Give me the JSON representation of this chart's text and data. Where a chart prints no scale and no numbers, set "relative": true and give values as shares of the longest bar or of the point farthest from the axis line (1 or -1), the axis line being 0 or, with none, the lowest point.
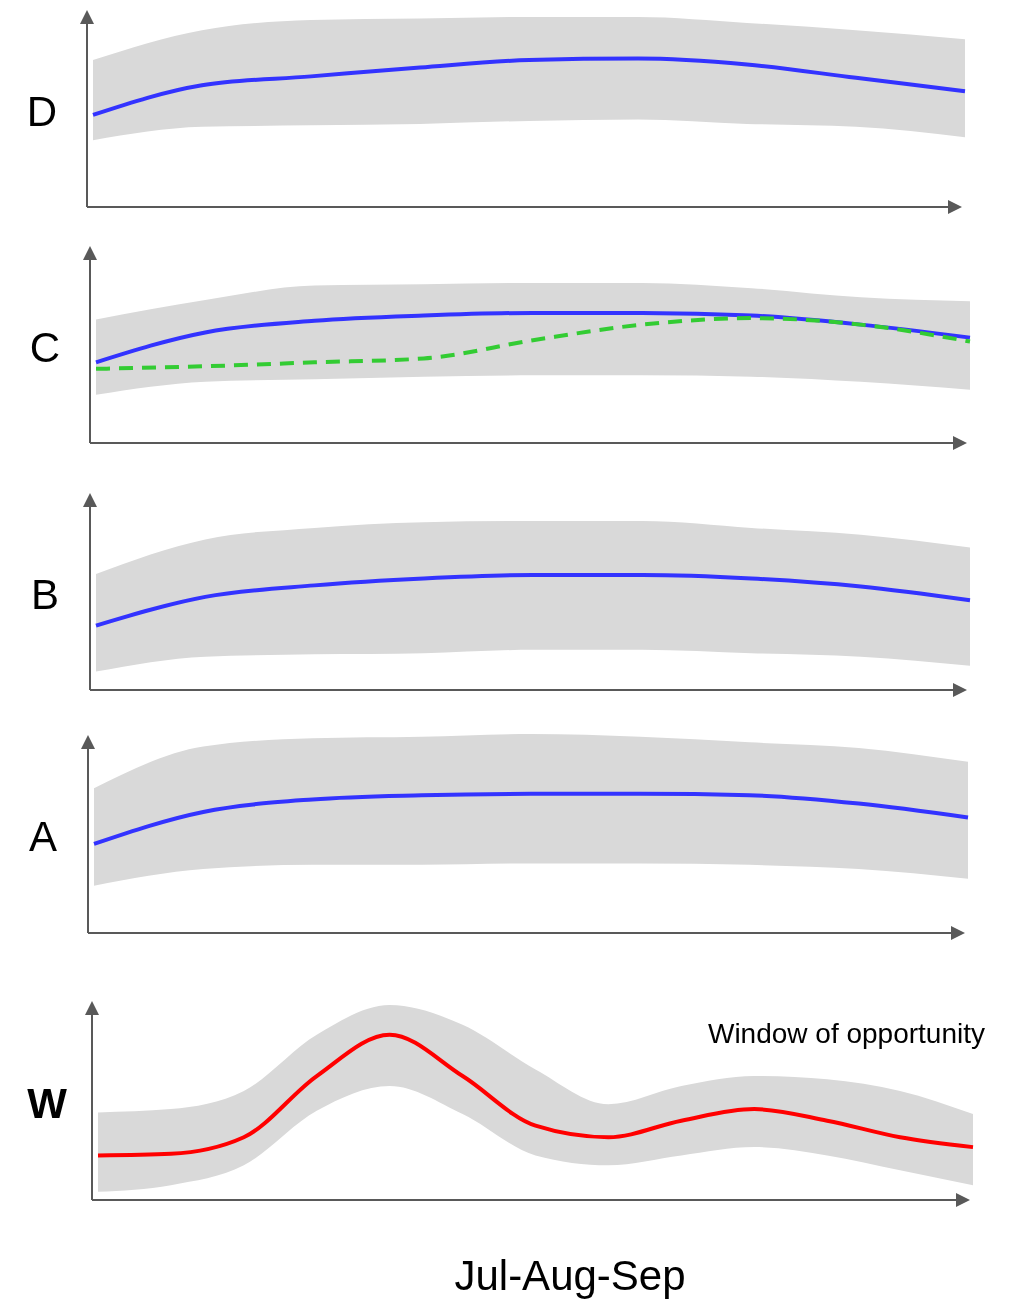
{
  "chart_data": [
    {
      "type": "line",
      "relative": true,
      "ylabel": "D",
      "categories": [
        null,
        null,
        null,
        null,
        null,
        null,
        null,
        null,
        null
      ],
      "series": [
        {
          "color": "#3333ff",
          "line_style": "solid",
          "values": [
            0.62,
            0.82,
            0.88,
            0.94,
            0.99,
            1,
            0.96,
            0.87,
            0.78
          ],
          "upper": [
            0.99,
            1.19,
            1.26,
            1.27,
            1.28,
            1.28,
            1.24,
            1.19,
            1.13
          ],
          "lower": [
            0.45,
            0.54,
            0.55,
            0.56,
            0.58,
            0.59,
            0.56,
            0.54,
            0.47
          ]
        }
      ]
    },
    {
      "type": "line",
      "relative": true,
      "ylabel": "C",
      "categories": [
        null,
        null,
        null,
        null,
        null,
        null,
        null,
        null,
        null
      ],
      "series": [
        {
          "color": "#3333ff",
          "line_style": "solid",
          "values": [
            0.62,
            0.85,
            0.94,
            0.98,
            1,
            1,
            0.98,
            0.91,
            0.81
          ],
          "upper": [
            0.95,
            1.1,
            1.21,
            1.22,
            1.23,
            1.23,
            1.19,
            1.12,
            1.09
          ],
          "lower": [
            0.37,
            0.47,
            0.49,
            0.51,
            0.52,
            0.52,
            0.51,
            0.47,
            0.41
          ]
        },
        {
          "color": "#33cc33",
          "line_style": "dashed",
          "values": [
            0.57,
            0.59,
            0.62,
            0.65,
            0.79,
            0.91,
            0.96,
            0.91,
            0.78
          ]
        }
      ]
    },
    {
      "type": "line",
      "relative": true,
      "ylabel": "B",
      "categories": [
        null,
        null,
        null,
        null,
        null,
        null,
        null,
        null,
        null
      ],
      "series": [
        {
          "color": "#3333ff",
          "line_style": "solid",
          "values": [
            0.56,
            0.81,
            0.91,
            0.97,
            1,
            1,
            0.97,
            0.9,
            0.78
          ],
          "upper": [
            1.01,
            1.31,
            1.41,
            1.46,
            1.47,
            1.47,
            1.41,
            1.35,
            1.24
          ],
          "lower": [
            0.16,
            0.29,
            0.31,
            0.32,
            0.35,
            0.35,
            0.32,
            0.29,
            0.21
          ]
        }
      ]
    },
    {
      "type": "line",
      "relative": true,
      "ylabel": "A",
      "categories": [
        null,
        null,
        null,
        null,
        null,
        null,
        null,
        null,
        null
      ],
      "series": [
        {
          "color": "#3333ff",
          "line_style": "solid",
          "values": [
            0.64,
            0.87,
            0.96,
            0.99,
            1,
            1,
            0.99,
            0.93,
            0.83
          ],
          "upper": [
            1.04,
            1.34,
            1.4,
            1.41,
            1.43,
            1.41,
            1.37,
            1.33,
            1.23
          ],
          "lower": [
            0.34,
            0.46,
            0.49,
            0.49,
            0.5,
            0.5,
            0.49,
            0.46,
            0.39
          ]
        }
      ]
    },
    {
      "type": "line",
      "relative": true,
      "ylabel": "W",
      "xlabel": "Jul-Aug-Sep",
      "annotations": [
        "Window of opportunity"
      ],
      "categories": [
        null,
        null,
        null,
        null,
        null,
        null,
        null,
        null,
        null,
        null,
        null,
        null,
        null
      ],
      "series": [
        {
          "color": "#ff0000",
          "line_style": "solid",
          "values": [
            0.27,
            0.28,
            0.38,
            0.75,
            1,
            0.75,
            0.45,
            0.38,
            0.48,
            0.55,
            0.48,
            0.38,
            0.32
          ],
          "upper": [
            0.53,
            0.55,
            0.66,
            1,
            1.18,
            1.06,
            0.79,
            0.58,
            0.69,
            0.75,
            0.73,
            0.66,
            0.52
          ],
          "lower": [
            0.05,
            0.09,
            0.21,
            0.54,
            0.69,
            0.52,
            0.27,
            0.21,
            0.27,
            0.32,
            0.27,
            0.18,
            0.09
          ]
        }
      ]
    }
  ]
}
